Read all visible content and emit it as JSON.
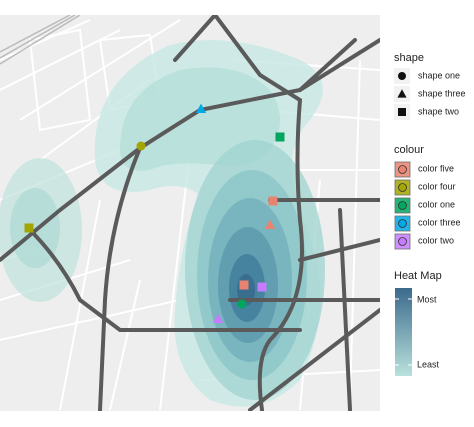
{
  "legend": {
    "shape": {
      "title": "shape",
      "items": [
        "shape one",
        "shape three",
        "shape two"
      ]
    },
    "colour": {
      "title": "colour",
      "items": [
        {
          "label": "color five",
          "color": "#e8836f"
        },
        {
          "label": "color four",
          "color": "#a3a500"
        },
        {
          "label": "color one",
          "color": "#00a65f"
        },
        {
          "label": "color three",
          "color": "#00a9e6"
        },
        {
          "label": "color two",
          "color": "#c77cff"
        }
      ]
    },
    "heatmap": {
      "title": "Heat Map",
      "high": "Most",
      "low": "Least",
      "colors": [
        "#3b6a8c",
        "#b9e2dc"
      ]
    }
  }
}
